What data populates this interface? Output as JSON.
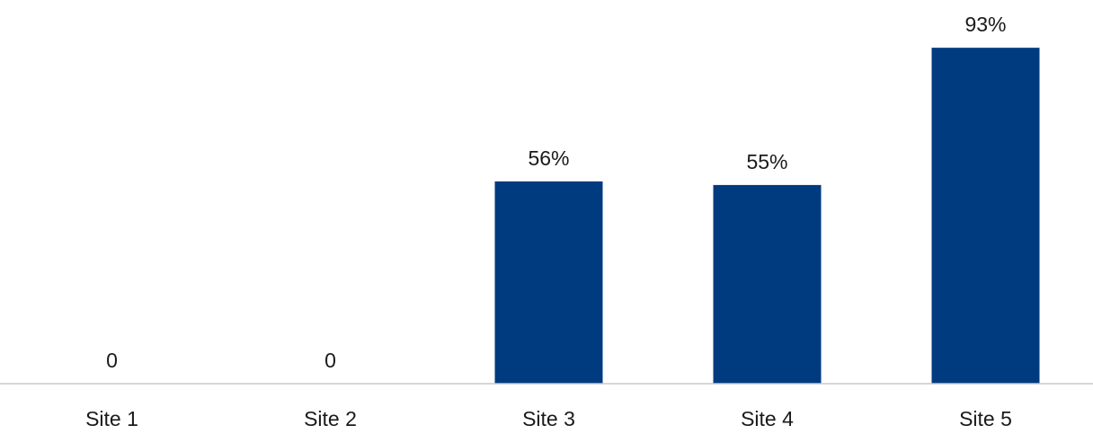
{
  "chart_data": {
    "type": "bar",
    "categories": [
      "Site 1",
      "Site 2",
      "Site 3",
      "Site 4",
      "Site 5"
    ],
    "values": [
      0,
      0,
      56,
      55,
      93
    ],
    "data_labels": [
      "0",
      "0",
      "56%",
      "55%",
      "93%"
    ],
    "ylim": [
      0,
      100
    ],
    "grid": false,
    "legend": "none",
    "colors": {
      "bar": "#003B7F",
      "axis": "#C8C8C8",
      "text": "#1a1a1a"
    }
  }
}
